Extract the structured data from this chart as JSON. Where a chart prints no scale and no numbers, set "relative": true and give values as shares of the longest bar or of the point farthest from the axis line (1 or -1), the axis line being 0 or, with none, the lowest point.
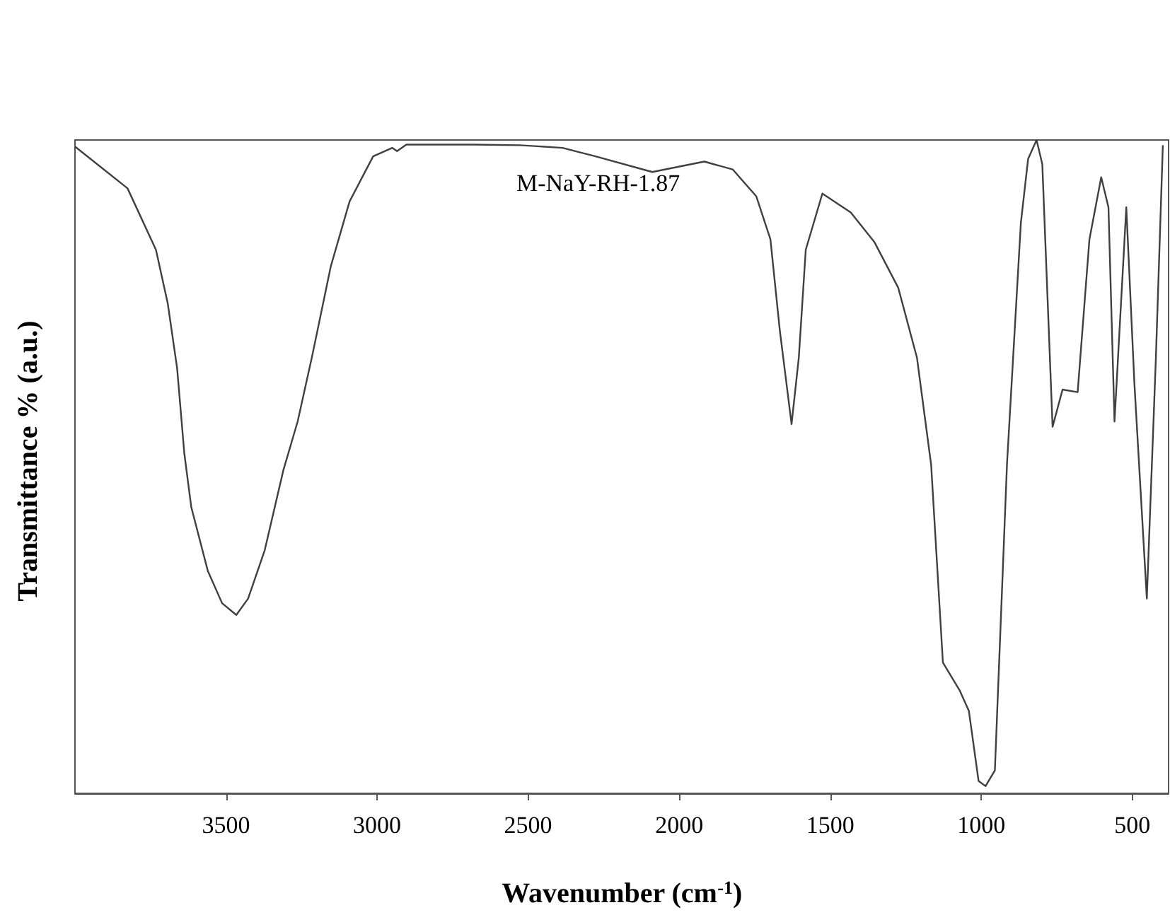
{
  "chart_data": {
    "type": "line",
    "relative": true,
    "xlabel": "Wavenumber (cm$^{-1}$)",
    "ylabel": "Transmittance % (a.u.)",
    "annotations": [
      "M-NaY-RH-1.87"
    ],
    "xlim": [
      4000,
      380
    ],
    "xticks": [
      3500,
      3000,
      2500,
      2000,
      1500,
      1000,
      500
    ],
    "grid": false,
    "marker": "none",
    "line_style": "solid",
    "series": [
      {
        "color": "#404040",
        "x": [
          4000,
          3826,
          3732,
          3693,
          3662,
          3638,
          3615,
          3560,
          3513,
          3466,
          3427,
          3372,
          3310,
          3263,
          3216,
          3153,
          3091,
          3013,
          2950,
          2934,
          2903,
          2685,
          2527,
          2386,
          2277,
          2089,
          1917,
          1823,
          1745,
          1698,
          1667,
          1628,
          1604,
          1581,
          1526,
          1432,
          1354,
          1275,
          1213,
          1166,
          1127,
          1072,
          1041,
          1009,
          986,
          955,
          915,
          869,
          845,
          817,
          798,
          764,
          731,
          681,
          642,
          603,
          579,
          559,
          520,
          493,
          452,
          422,
          399
        ],
        "values": [
          0.99,
          0.926,
          0.832,
          0.75,
          0.651,
          0.52,
          0.438,
          0.34,
          0.291,
          0.273,
          0.298,
          0.372,
          0.495,
          0.569,
          0.667,
          0.807,
          0.906,
          0.975,
          0.988,
          0.983,
          0.993,
          0.993,
          0.992,
          0.988,
          0.975,
          0.951,
          0.967,
          0.955,
          0.914,
          0.848,
          0.709,
          0.565,
          0.667,
          0.832,
          0.918,
          0.889,
          0.844,
          0.774,
          0.667,
          0.503,
          0.2,
          0.158,
          0.126,
          0.019,
          0.011,
          0.035,
          0.503,
          0.873,
          0.971,
          1.0,
          0.963,
          0.561,
          0.618,
          0.614,
          0.848,
          0.943,
          0.897,
          0.569,
          0.897,
          0.626,
          0.298,
          0.667,
          0.992
        ]
      }
    ]
  }
}
